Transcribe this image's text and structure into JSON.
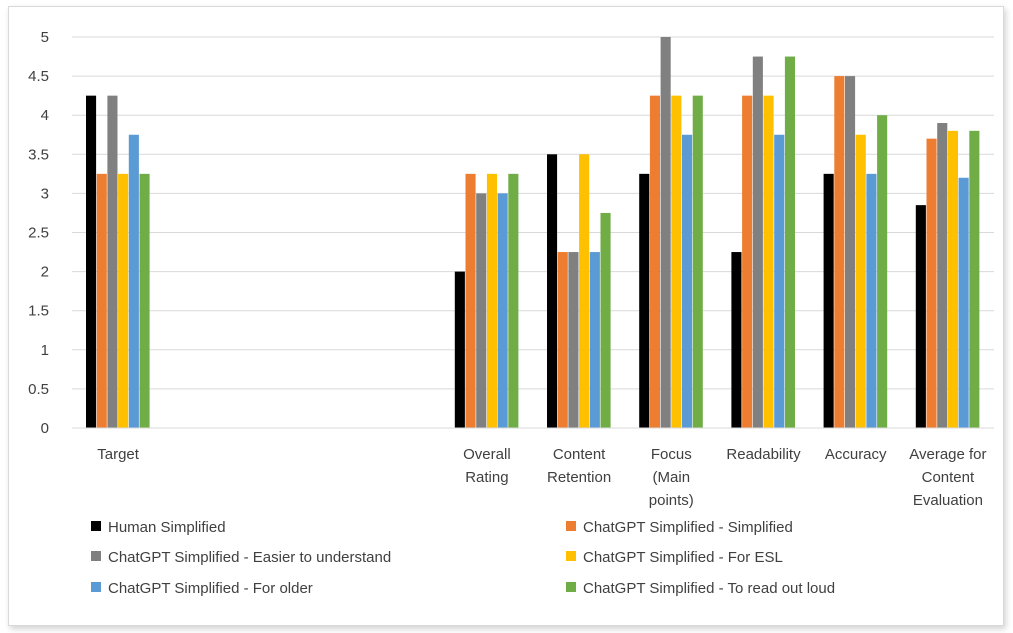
{
  "chart_data": {
    "type": "bar",
    "title": "",
    "xlabel": "",
    "ylabel": "",
    "ylim": [
      0,
      5
    ],
    "yticks": [
      "0",
      "0.5",
      "1",
      "1.5",
      "2",
      "2.5",
      "3",
      "3.5",
      "4",
      "4.5",
      "5"
    ],
    "grid": true,
    "legend_position": "bottom",
    "categories": [
      [
        "Target"
      ],
      [],
      [],
      [],
      [
        "Overall",
        "Rating"
      ],
      [
        "Content",
        "Retention"
      ],
      [
        "Focus",
        "(Main",
        "points)"
      ],
      [
        "Readability"
      ],
      [
        "Accuracy"
      ],
      [
        "Average for",
        "Content",
        "Evaluation"
      ]
    ],
    "series": [
      {
        "name": "Human Simplified",
        "color": "#000000",
        "values": [
          4.25,
          null,
          null,
          null,
          2.0,
          3.5,
          3.25,
          2.25,
          3.25,
          2.85
        ]
      },
      {
        "name": "ChatGPT Simplified -  Simplified",
        "color": "#ED7D31",
        "values": [
          3.25,
          null,
          null,
          null,
          3.25,
          2.25,
          4.25,
          4.25,
          4.5,
          3.7
        ]
      },
      {
        "name": "ChatGPT Simplified -  Easier to understand",
        "color": "#808080",
        "values": [
          4.25,
          null,
          null,
          null,
          3.0,
          2.25,
          5.0,
          4.75,
          4.5,
          3.9
        ]
      },
      {
        "name": "ChatGPT Simplified -  For ESL",
        "color": "#FFC000",
        "values": [
          3.25,
          null,
          null,
          null,
          3.25,
          3.5,
          4.25,
          4.25,
          3.75,
          3.8
        ]
      },
      {
        "name": "ChatGPT Simplified -  For older",
        "color": "#5B9BD5",
        "values": [
          3.75,
          null,
          null,
          null,
          3.0,
          2.25,
          3.75,
          3.75,
          3.25,
          3.2
        ]
      },
      {
        "name": "ChatGPT Simplified -  To read out loud",
        "color": "#70AD47",
        "values": [
          3.25,
          null,
          null,
          null,
          3.25,
          2.75,
          4.25,
          4.75,
          4.0,
          3.8
        ]
      }
    ]
  }
}
